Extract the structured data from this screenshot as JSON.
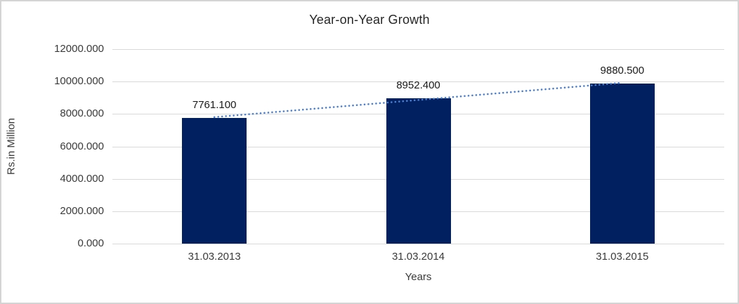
{
  "chart_data": {
    "type": "bar",
    "title": "Year-on-Year Growth",
    "xlabel": "Years",
    "ylabel": "Rs.in Million",
    "categories": [
      "31.03.2013",
      "31.03.2014",
      "31.03.2015"
    ],
    "values": [
      7761.1,
      8952.4,
      9880.5
    ],
    "data_labels": [
      "7761.100",
      "8952.400",
      "9880.500"
    ],
    "ylim": [
      0,
      12000
    ],
    "ytick_interval": 2000,
    "ytick_labels": [
      "0.000",
      "2000.000",
      "4000.000",
      "6000.000",
      "8000.000",
      "10000.000",
      "12000.000"
    ],
    "grid": true,
    "legend": "none",
    "colors": {
      "bar": "#002060",
      "trendline": "#4a7fd1",
      "gridline": "#d9d9d9",
      "axis_text": "#3a3a3a",
      "label_text": "#1a1a1a",
      "frame": "#d4d4d4"
    },
    "trendline": {
      "type": "linear",
      "style": "dotted",
      "endpoint_values": [
        7805,
        9924.4
      ]
    }
  }
}
